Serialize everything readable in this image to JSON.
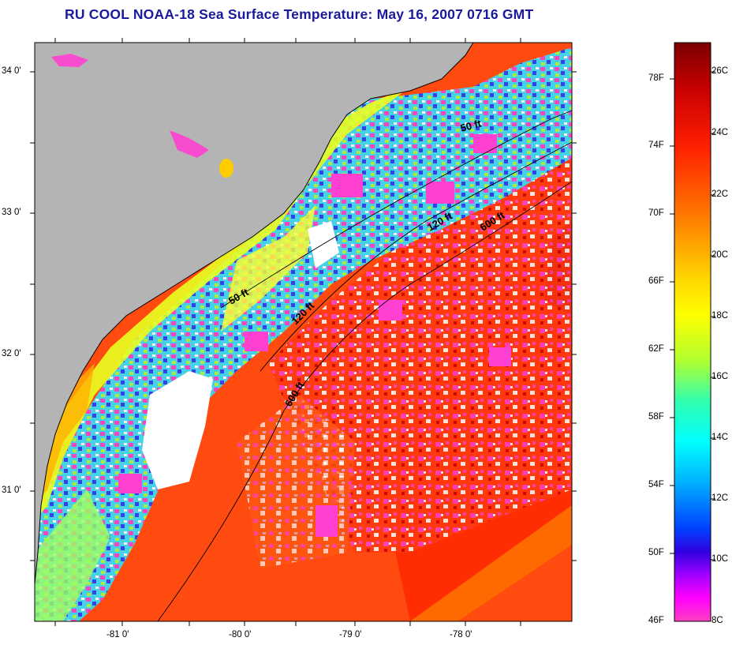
{
  "title": "RU COOL  NOAA-18  Sea Surface Temperature:  May 16, 2007 0716 GMT",
  "map": {
    "lat_labels": [
      "34 0'",
      "33 0'",
      "32 0'",
      "31 0'"
    ],
    "lon_labels": [
      "-81 0'",
      "-80 0'",
      "-79 0'",
      "-78 0'"
    ],
    "land_color": "#b4b4b4",
    "contours": [
      {
        "label": "50 ft"
      },
      {
        "label": "50 ft"
      },
      {
        "label": "120 ft"
      },
      {
        "label": "120 ft"
      },
      {
        "label": "600 ft"
      },
      {
        "label": "600 ft"
      }
    ]
  },
  "colorbar": {
    "fahrenheit": [
      "78F",
      "74F",
      "70F",
      "66F",
      "62F",
      "58F",
      "54F",
      "50F",
      "46F"
    ],
    "celsius": [
      "26C",
      "24C",
      "22C",
      "20C",
      "18C",
      "16C",
      "14C",
      "12C",
      "10C",
      "8C"
    ],
    "colors": [
      "#7a0000",
      "#c80000",
      "#ff2000",
      "#ff7a00",
      "#ffd000",
      "#ffff00",
      "#b0ff30",
      "#30ffb0",
      "#00ffff",
      "#00b0ff",
      "#0040ff",
      "#3000e0",
      "#a000ff",
      "#ff00ff",
      "#ff40c0"
    ]
  }
}
